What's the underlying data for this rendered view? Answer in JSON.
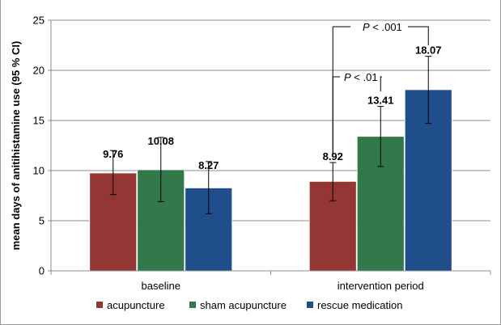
{
  "chart_data": {
    "type": "bar",
    "title": "",
    "xlabel": "",
    "ylabel": "mean days of anitihistamine use (95 % CI)",
    "ylim": [
      0,
      25
    ],
    "yticks": [
      0,
      5,
      10,
      15,
      20,
      25
    ],
    "grid": true,
    "legend_position": "bottom",
    "categories": [
      "baseline",
      "intervention period"
    ],
    "series": [
      {
        "name": "acupuncture",
        "color": "#943634",
        "values": [
          9.76,
          8.92
        ],
        "ci_low": [
          7.6,
          7.0
        ],
        "ci_high": [
          12.0,
          10.8
        ],
        "labels": [
          "9.76",
          "8.92"
        ]
      },
      {
        "name": "sham acupuncture",
        "color": "#31784a",
        "values": [
          10.08,
          13.41
        ],
        "ci_low": [
          6.9,
          10.4
        ],
        "ci_high": [
          13.3,
          16.4
        ],
        "labels": [
          "10.08",
          "13.41"
        ]
      },
      {
        "name": "rescue medication",
        "color": "#1f4e8a",
        "values": [
          8.27,
          18.07
        ],
        "ci_low": [
          5.7,
          14.7
        ],
        "ci_high": [
          10.9,
          21.4
        ],
        "labels": [
          "8.27",
          "18.07"
        ]
      }
    ],
    "annotations": [
      {
        "p_symbol": "P",
        "text": " < .001",
        "from_series": 0,
        "to_series": 2,
        "category": 1
      },
      {
        "p_symbol": "P",
        "text": " < .01",
        "from_series": 0,
        "to_series": 1,
        "category": 1
      }
    ]
  }
}
